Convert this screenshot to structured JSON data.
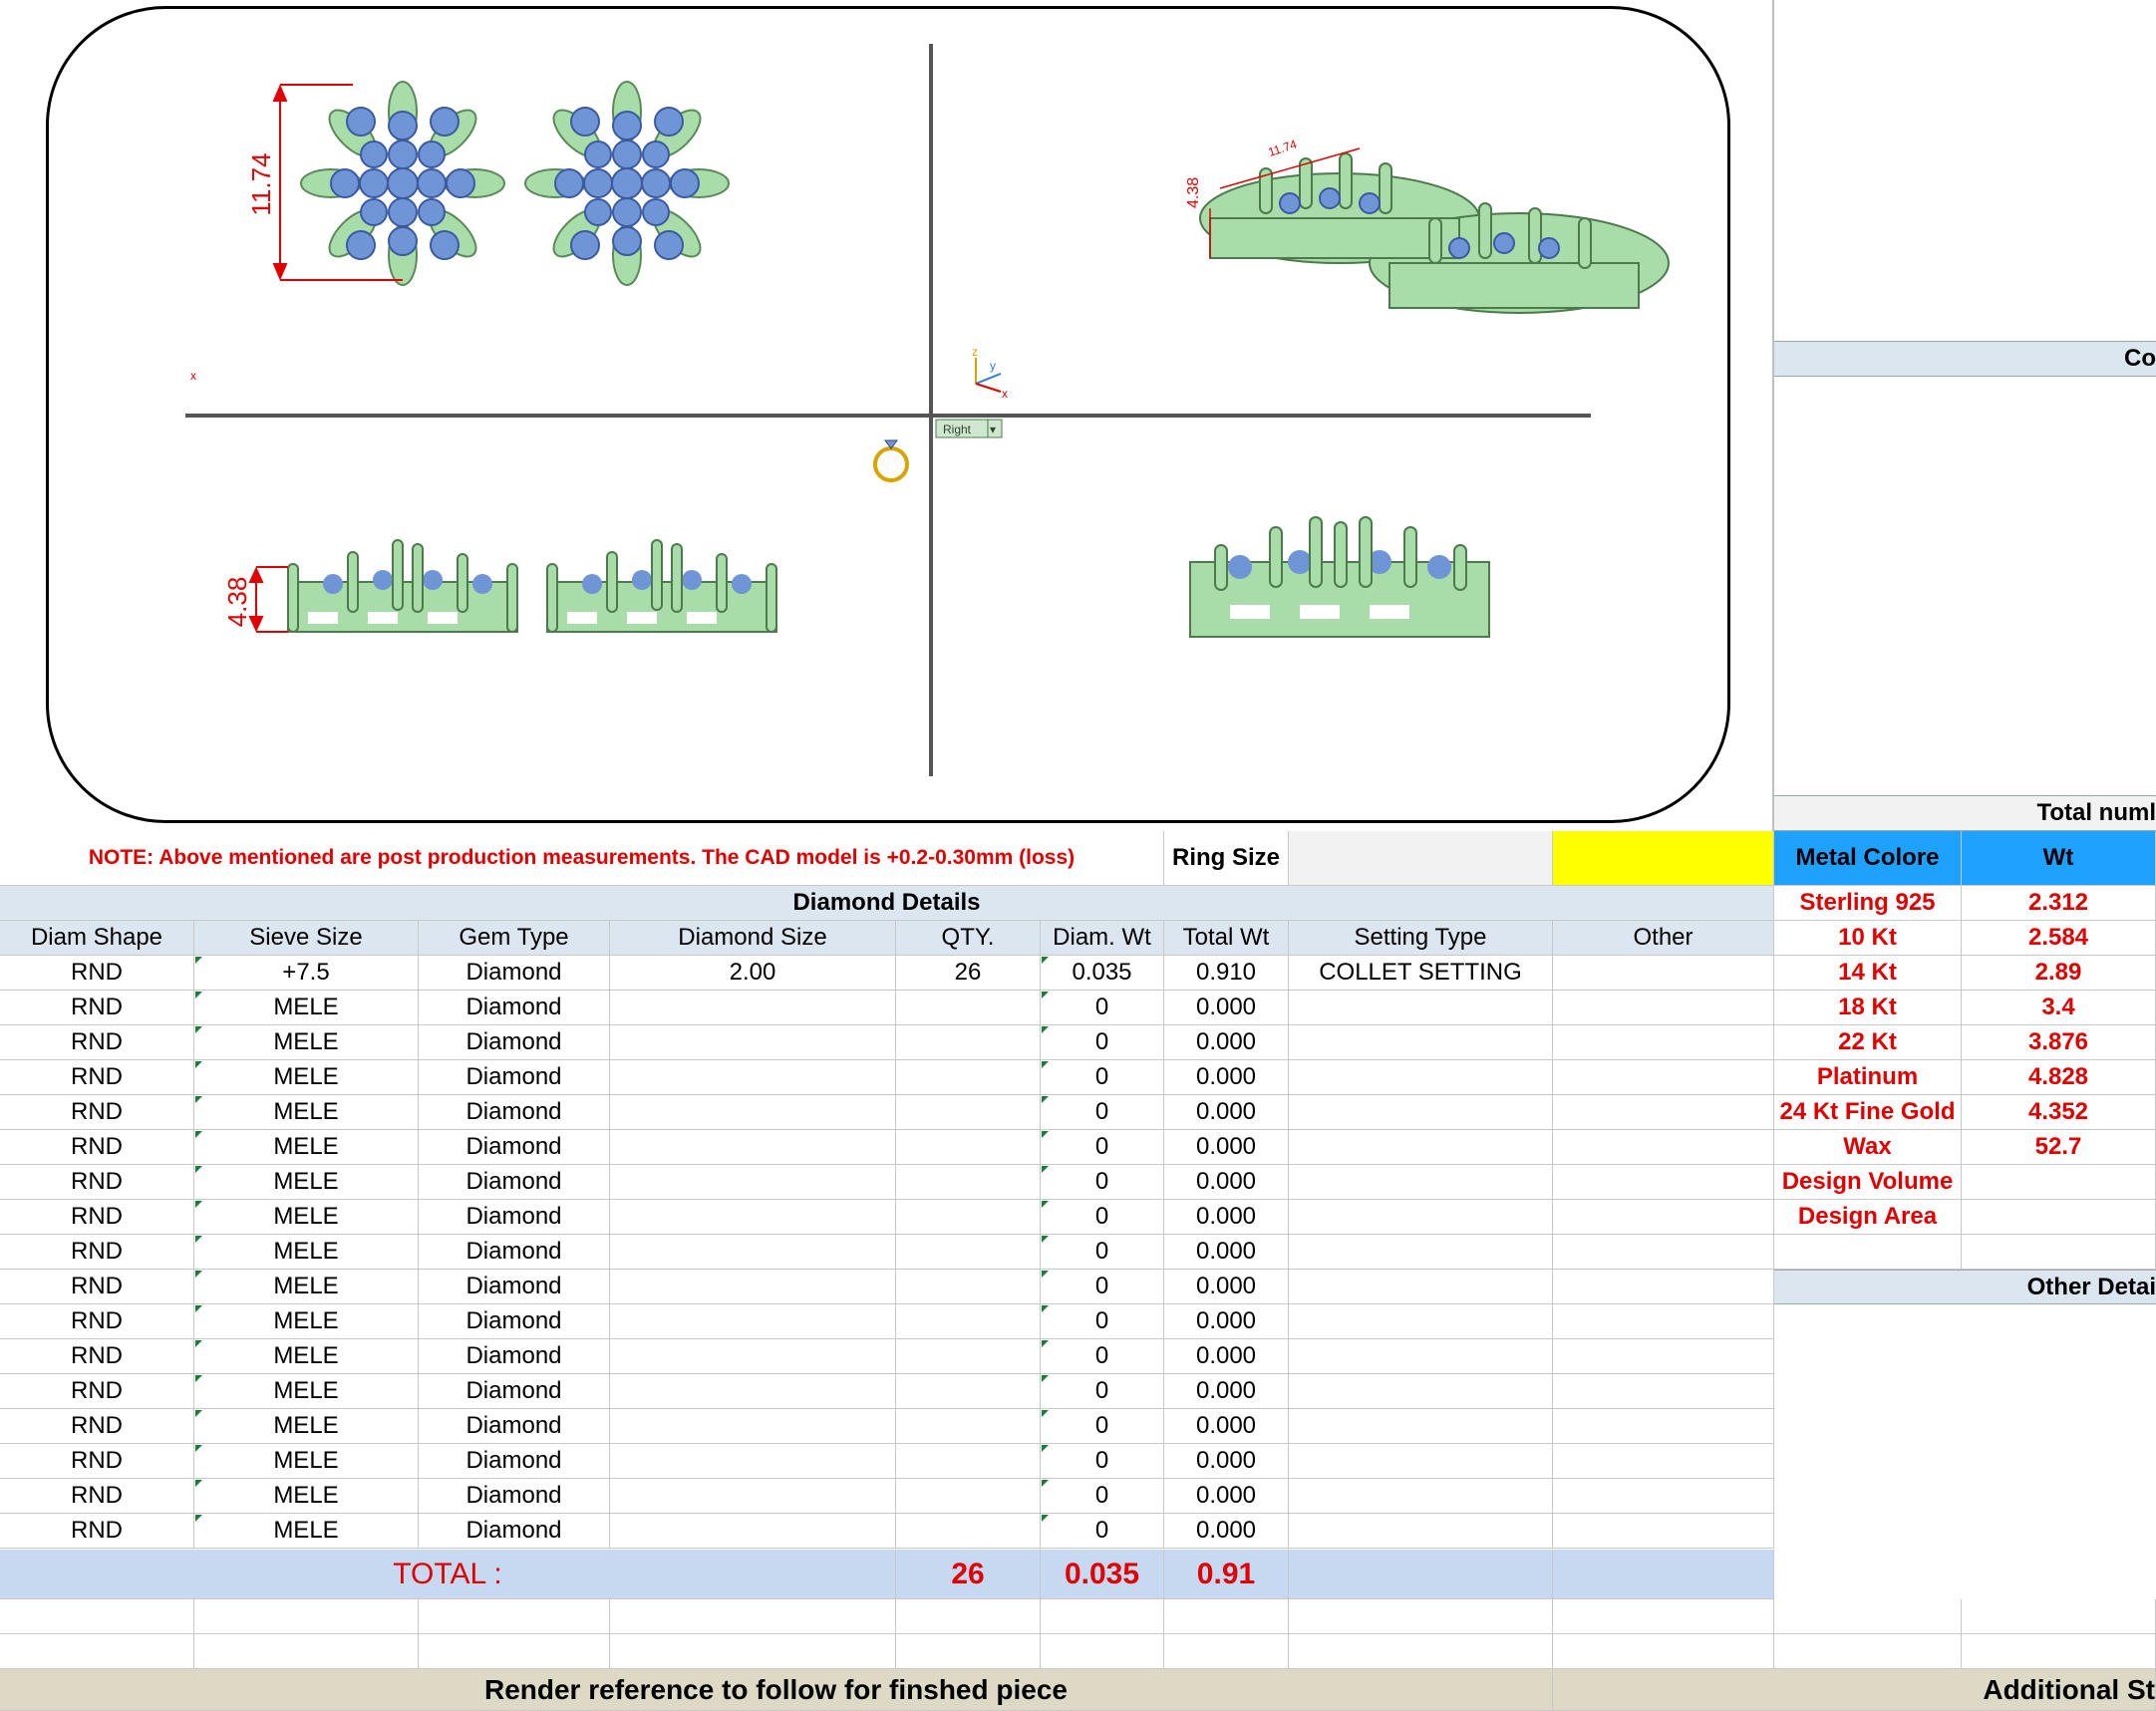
{
  "cad": {
    "dim_top_height": "11.74",
    "dim_side_height": "4.38",
    "dim_iso_a": "4.38",
    "dim_iso_b": "11.74",
    "viewport_label": "Right",
    "axis_y": "y",
    "axis_x": "x",
    "axis_z": "z",
    "colors": {
      "metal": "#a8dca8",
      "stone": "#6f95d6",
      "dimension": "#e00000"
    }
  },
  "note": "NOTE: Above mentioned are post production measurements. The CAD model is +0.2-0.30mm (loss)",
  "ring_size_label": "Ring Size",
  "ring_size_value": "",
  "diamond_details_title": "Diamond Details",
  "columns": [
    "Diam Shape",
    "Sieve Size",
    "Gem Type",
    "Diamond Size",
    "QTY.",
    "Diam. Wt",
    "Total Wt",
    "Setting Type",
    "Other"
  ],
  "rows": [
    [
      "RND",
      "+7.5",
      "Diamond",
      "2.00",
      "26",
      "0.035",
      "0.910",
      "COLLET SETTING",
      ""
    ],
    [
      "RND",
      "MELE",
      "Diamond",
      "",
      "",
      "0",
      "0.000",
      "",
      ""
    ],
    [
      "RND",
      "MELE",
      "Diamond",
      "",
      "",
      "0",
      "0.000",
      "",
      ""
    ],
    [
      "RND",
      "MELE",
      "Diamond",
      "",
      "",
      "0",
      "0.000",
      "",
      ""
    ],
    [
      "RND",
      "MELE",
      "Diamond",
      "",
      "",
      "0",
      "0.000",
      "",
      ""
    ],
    [
      "RND",
      "MELE",
      "Diamond",
      "",
      "",
      "0",
      "0.000",
      "",
      ""
    ],
    [
      "RND",
      "MELE",
      "Diamond",
      "",
      "",
      "0",
      "0.000",
      "",
      ""
    ],
    [
      "RND",
      "MELE",
      "Diamond",
      "",
      "",
      "0",
      "0.000",
      "",
      ""
    ],
    [
      "RND",
      "MELE",
      "Diamond",
      "",
      "",
      "0",
      "0.000",
      "",
      ""
    ],
    [
      "RND",
      "MELE",
      "Diamond",
      "",
      "",
      "0",
      "0.000",
      "",
      ""
    ],
    [
      "RND",
      "MELE",
      "Diamond",
      "",
      "",
      "0",
      "0.000",
      "",
      ""
    ],
    [
      "RND",
      "MELE",
      "Diamond",
      "",
      "",
      "0",
      "0.000",
      "",
      ""
    ],
    [
      "RND",
      "MELE",
      "Diamond",
      "",
      "",
      "0",
      "0.000",
      "",
      ""
    ],
    [
      "RND",
      "MELE",
      "Diamond",
      "",
      "",
      "0",
      "0.000",
      "",
      ""
    ],
    [
      "RND",
      "MELE",
      "Diamond",
      "",
      "",
      "0",
      "0.000",
      "",
      ""
    ],
    [
      "RND",
      "MELE",
      "Diamond",
      "",
      "",
      "0",
      "0.000",
      "",
      ""
    ],
    [
      "RND",
      "MELE",
      "Diamond",
      "",
      "",
      "0",
      "0.000",
      "",
      ""
    ]
  ],
  "total": {
    "label": "TOTAL :",
    "qty": "26",
    "diam_wt": "0.035",
    "total_wt": "0.91"
  },
  "metal": {
    "header_color": "Metal Colore",
    "header_wt": "Wt",
    "items": [
      {
        "name": "Sterling 925",
        "wt": "2.312"
      },
      {
        "name": "10 Kt",
        "wt": "2.584"
      },
      {
        "name": "14 Kt",
        "wt": "2.89"
      },
      {
        "name": "18 Kt",
        "wt": "3.4"
      },
      {
        "name": "22 Kt",
        "wt": "3.876"
      },
      {
        "name": "Platinum",
        "wt": "4.828"
      },
      {
        "name": "24 Kt Fine Gold",
        "wt": "4.352"
      },
      {
        "name": "Wax",
        "wt": "52.7"
      },
      {
        "name": "Design Volume",
        "wt": ""
      },
      {
        "name": "Design Area",
        "wt": ""
      }
    ]
  },
  "right_panel": {
    "band1": "Co",
    "band2": "Total numl",
    "band3": "Other Detai"
  },
  "footer": {
    "render_ref": "Render reference to follow for finshed piece",
    "additional": "Additional St"
  }
}
